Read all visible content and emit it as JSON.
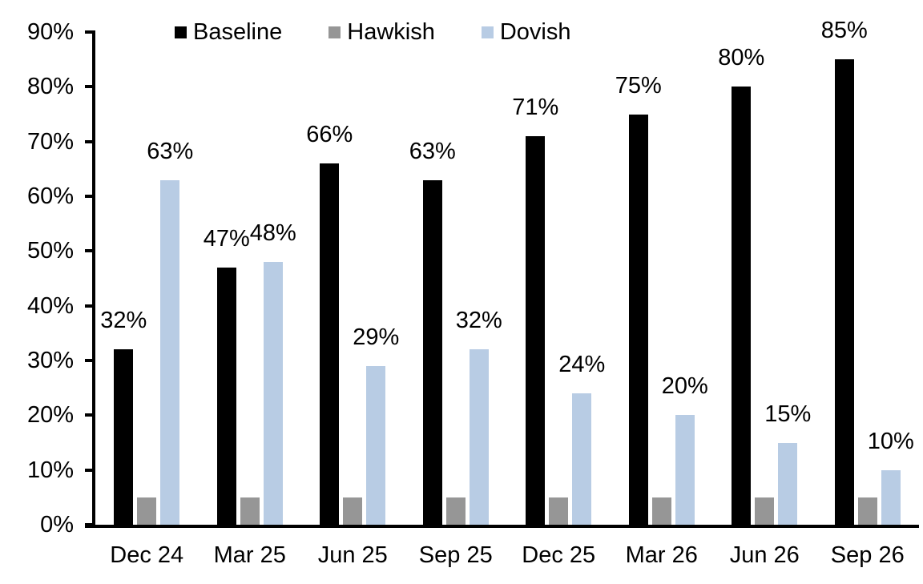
{
  "chart_data": {
    "type": "bar",
    "title": "",
    "categories": [
      "Dec 24",
      "Mar 25",
      "Jun 25",
      "Sep 25",
      "Dec 25",
      "Mar 26",
      "Jun 26",
      "Sep 26"
    ],
    "series": [
      {
        "name": "Baseline",
        "color": "#000000",
        "values": [
          32,
          47,
          66,
          63,
          71,
          75,
          80,
          85
        ],
        "labels": [
          "32%",
          "47%",
          "66%",
          "63%",
          "71%",
          "75%",
          "80%",
          "85%"
        ],
        "show_labels": true
      },
      {
        "name": "Hawkish",
        "color": "#969696",
        "values": [
          5,
          5,
          5,
          5,
          5,
          5,
          5,
          5
        ],
        "labels": [],
        "show_labels": false
      },
      {
        "name": "Dovish",
        "color": "#B8CCE4",
        "values": [
          63,
          48,
          29,
          32,
          24,
          20,
          15,
          10
        ],
        "labels": [
          "63%",
          "48%",
          "29%",
          "32%",
          "24%",
          "20%",
          "15%",
          "10%"
        ],
        "show_labels": true
      }
    ],
    "xlabel": "",
    "ylabel": "",
    "ylim": [
      0,
      90
    ],
    "ytick_step": 10,
    "ytick_labels": [
      "0%",
      "10%",
      "20%",
      "30%",
      "40%",
      "50%",
      "60%",
      "70%",
      "80%",
      "90%"
    ],
    "legend_position": "top",
    "grid": false,
    "axis_color": "#000000",
    "background_color": "#FFFFFF"
  }
}
